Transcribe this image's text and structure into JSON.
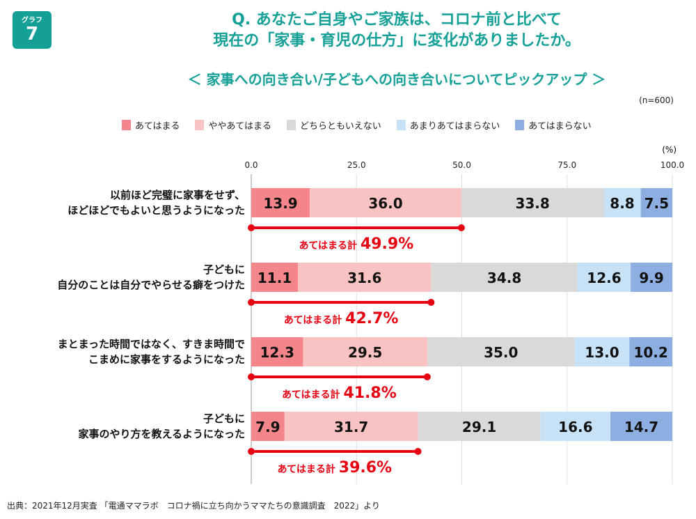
{
  "badge": {
    "small": "グラフ",
    "number": "7"
  },
  "title": {
    "line1": "Q. あなたご自身やご家族は、コロナ前と比べて",
    "line2": "現在の「家事・育児の仕方」に変化がありましたか。"
  },
  "subtitle": "＜ 家事への向き合い/子どもへの向き合いについてピックアップ ＞",
  "sample": "(n=600)",
  "source": "出典：2021年12月実査 「電通ママラボ　コロナ禍に立ち向かうママたちの意識調査　2022」より",
  "chart_data": {
    "type": "bar",
    "orientation": "horizontal-stacked",
    "unit": "(%)",
    "xlim": [
      0,
      100
    ],
    "ticks": [
      "0.0",
      "25.0",
      "50.0",
      "75.0",
      "100.0"
    ],
    "legend_position": "top",
    "series": [
      {
        "name": "あてはまる",
        "color": "#f4868b"
      },
      {
        "name": "ややあてはまる",
        "color": "#f9c3c3"
      },
      {
        "name": "どちらともいえない",
        "color": "#d9d9d9"
      },
      {
        "name": "あまりあてはまらない",
        "color": "#c7e1f7"
      },
      {
        "name": "あてはまらない",
        "color": "#8daee0"
      }
    ],
    "summary_color": "#e60012",
    "summary_prefix": "あてはまる計",
    "categories": [
      {
        "label": [
          "以前ほど完璧に家事をせず、",
          "ほどほどでもよいと思うようになった"
        ],
        "values": [
          13.9,
          36.0,
          33.8,
          8.8,
          7.5
        ],
        "total": "49.9%",
        "total_value": 49.9
      },
      {
        "label": [
          "子どもに",
          "自分のことは自分でやらせる癖をつけた"
        ],
        "values": [
          11.1,
          31.6,
          34.8,
          12.6,
          9.9
        ],
        "total": "42.7%",
        "total_value": 42.7
      },
      {
        "label": [
          "まとまった時間ではなく、すきま時間で",
          "こまめに家事をするようになった"
        ],
        "values": [
          12.3,
          29.5,
          35.0,
          13.0,
          10.2
        ],
        "total": "41.8%",
        "total_value": 41.8
      },
      {
        "label": [
          "子どもに",
          "家事のやり方を教えるようになった"
        ],
        "values": [
          7.9,
          31.7,
          29.1,
          16.6,
          14.7
        ],
        "total": "39.6%",
        "total_value": 39.6
      }
    ]
  }
}
